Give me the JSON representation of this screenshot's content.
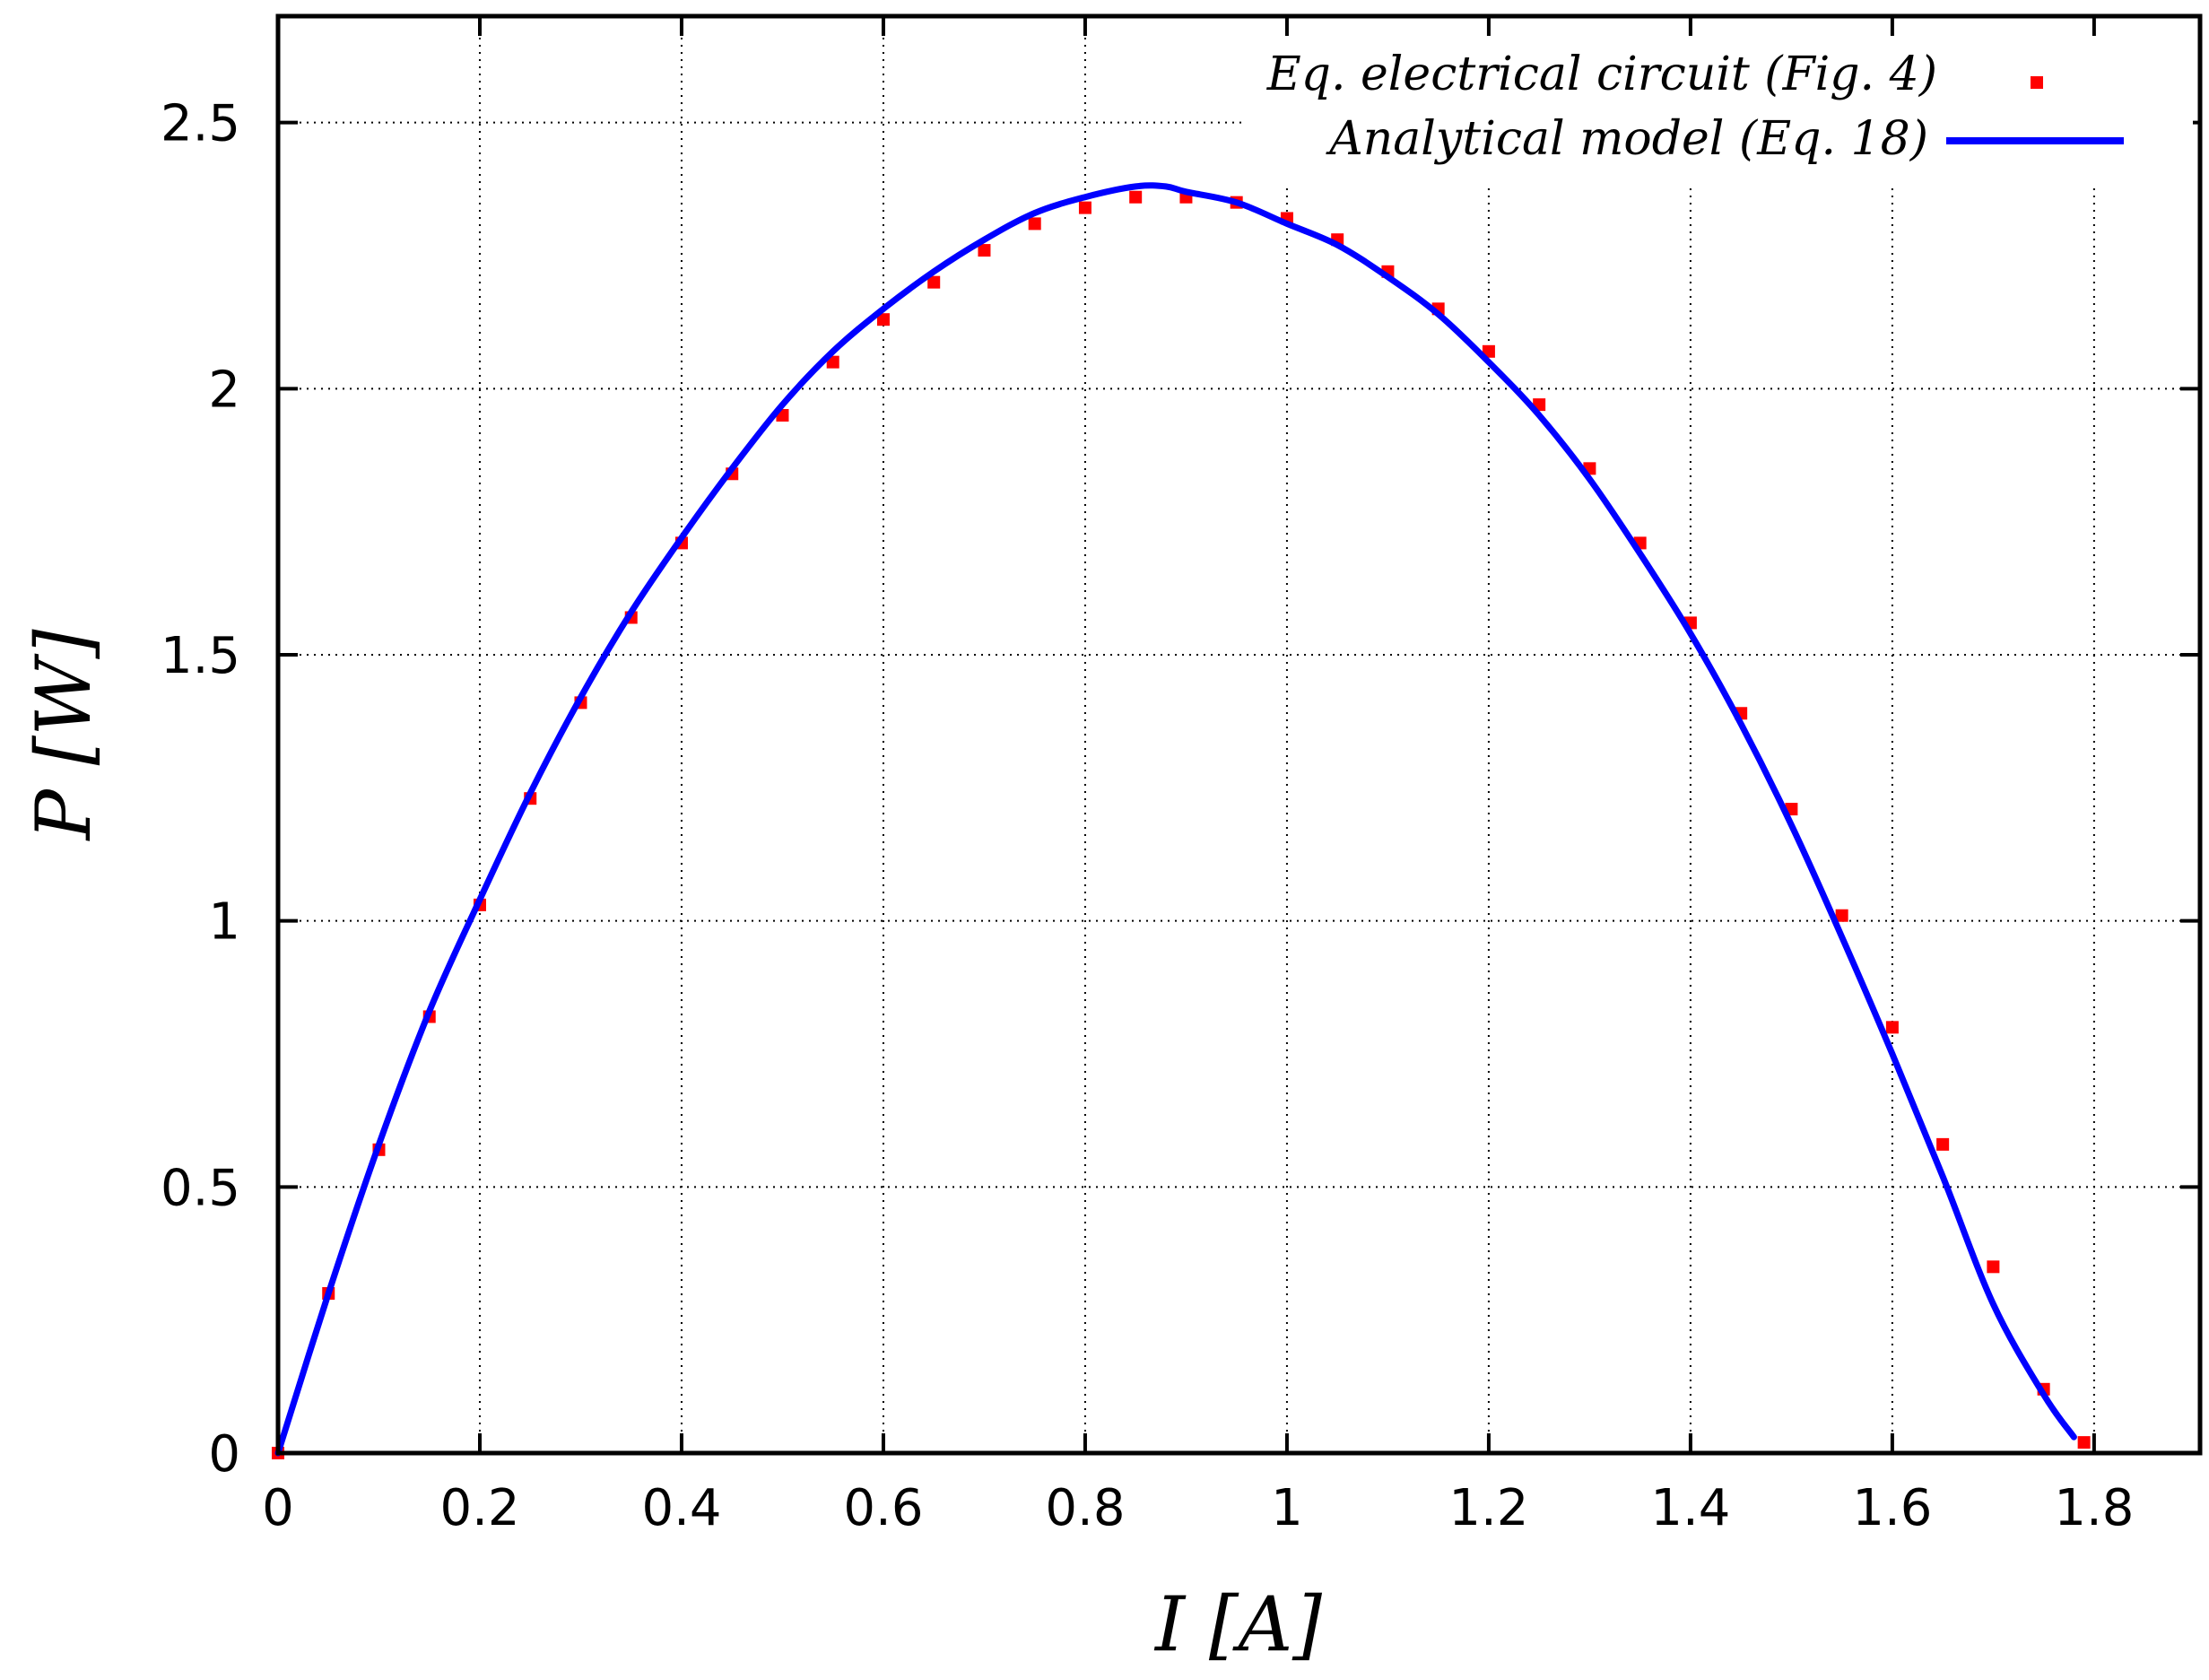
{
  "chart_data": {
    "type": "scatter",
    "xlabel": "I [A]",
    "ylabel": "P [W]",
    "xlim": [
      0,
      1.905
    ],
    "ylim": [
      0,
      2.7
    ],
    "x_ticks": [
      0,
      0.2,
      0.4,
      0.6,
      0.8,
      1,
      1.2,
      1.4,
      1.6,
      1.8
    ],
    "x_tick_labels": [
      "0",
      "0.2",
      "0.4",
      "0.6",
      "0.8",
      "1",
      "1.2",
      "1.4",
      "1.6",
      "1.8"
    ],
    "y_ticks": [
      0,
      0.5,
      1,
      1.5,
      2,
      2.5
    ],
    "y_tick_labels": [
      "0",
      "0.5",
      "1",
      "1.5",
      "2",
      "2.5"
    ],
    "grid": true,
    "legend_position": "top-right",
    "series": [
      {
        "name": "Eq. electrical circuit (Fig. 4)",
        "kind": "points",
        "color": "#ff0000",
        "x": [
          0,
          0.05,
          0.1,
          0.15,
          0.2,
          0.25,
          0.3,
          0.35,
          0.4,
          0.45,
          0.5,
          0.55,
          0.6,
          0.65,
          0.7,
          0.75,
          0.8,
          0.85,
          0.9,
          0.95,
          1.0,
          1.05,
          1.1,
          1.15,
          1.2,
          1.25,
          1.3,
          1.35,
          1.4,
          1.45,
          1.5,
          1.55,
          1.6,
          1.65,
          1.7,
          1.75,
          1.79
        ],
        "y": [
          0.0,
          0.3,
          0.57,
          0.82,
          1.03,
          1.23,
          1.41,
          1.57,
          1.71,
          1.84,
          1.95,
          2.05,
          2.13,
          2.2,
          2.26,
          2.31,
          2.34,
          2.36,
          2.36,
          2.35,
          2.32,
          2.28,
          2.22,
          2.15,
          2.07,
          1.97,
          1.85,
          1.71,
          1.56,
          1.39,
          1.21,
          1.01,
          0.8,
          0.58,
          0.35,
          0.12,
          0.02
        ]
      },
      {
        "name": "Analytical model (Eq. 18)",
        "kind": "line",
        "color": "#0000ff",
        "x": [
          0,
          0.05,
          0.1,
          0.15,
          0.2,
          0.25,
          0.3,
          0.35,
          0.4,
          0.45,
          0.5,
          0.55,
          0.6,
          0.65,
          0.7,
          0.75,
          0.8,
          0.85,
          0.88,
          0.9,
          0.95,
          1.0,
          1.05,
          1.1,
          1.15,
          1.2,
          1.25,
          1.3,
          1.35,
          1.4,
          1.45,
          1.5,
          1.55,
          1.6,
          1.65,
          1.7,
          1.75,
          1.78
        ],
        "y": [
          0.0,
          0.3,
          0.58,
          0.83,
          1.04,
          1.24,
          1.42,
          1.58,
          1.72,
          1.85,
          1.97,
          2.07,
          2.15,
          2.22,
          2.28,
          2.33,
          2.36,
          2.38,
          2.38,
          2.37,
          2.35,
          2.31,
          2.27,
          2.21,
          2.14,
          2.05,
          1.95,
          1.83,
          1.69,
          1.54,
          1.37,
          1.18,
          0.97,
          0.75,
          0.52,
          0.28,
          0.11,
          0.03
        ]
      }
    ]
  }
}
